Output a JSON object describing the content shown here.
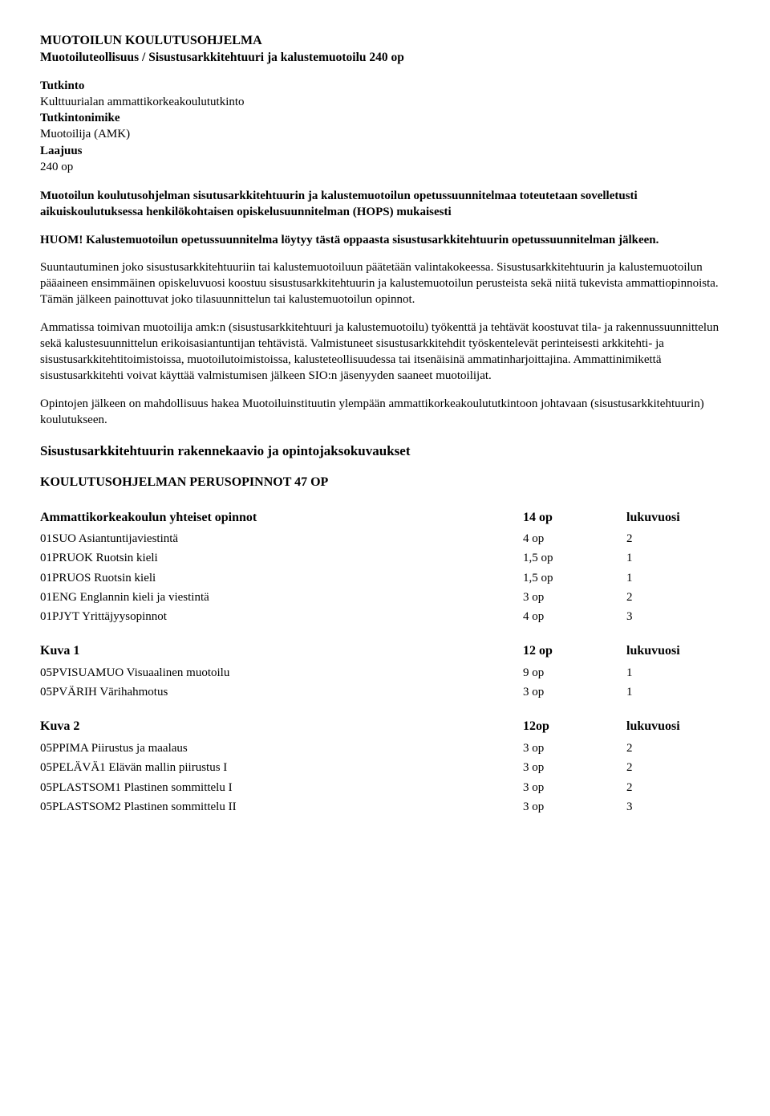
{
  "header": {
    "program_title": "MUOTOILUN KOULUTUSOHJELMA",
    "program_subtitle": "Muotoiluteollisuus / Sisustusarkkitehtuuri ja kalustemuotoilu 240 op",
    "meta": [
      {
        "label": "Tutkinto",
        "value": "Kulttuurialan ammattikorkeakoulututkinto"
      },
      {
        "label": "Tutkintonimike",
        "value": "Muotoilija (AMK)"
      },
      {
        "label": "Laajuus",
        "value": "240 op"
      }
    ]
  },
  "intro": {
    "p1": "Muotoilun koulutusohjelman sisutusarkkitehtuurin ja kalustemuotoilun opetussuunnitelmaa toteutetaan sovelletusti aikuiskoulutuksessa henkilökohtaisen opiskelusuunnitelman (HOPS) mukaisesti",
    "p2": "HUOM! Kalustemuotoilun opetussuunnitelma löytyy tästä oppaasta sisustusarkkitehtuurin opetussuunnitelman jälkeen.",
    "p3": "Suuntautuminen joko sisustusarkkitehtuuriin tai kalustemuotoiluun päätetään valintakokeessa. Sisustusarkkitehtuurin ja kalustemuotoilun pääaineen ensimmäinen opiskeluvuosi koostuu sisustusarkkitehtuurin ja kalustemuotoilun perusteista sekä niitä tukevista ammattiopinnoista. Tämän jälkeen painottuvat joko tilasuunnittelun tai kalustemuotoilun opinnot.",
    "p4": "Ammatissa toimivan muotoilija amk:n (sisustusarkkitehtuuri ja kalustemuotoilu) työkenttä ja tehtävät koostuvat tila- ja rakennussuunnittelun sekä kalustesuunnittelun erikoisasiantuntijan tehtävistä. Valmistuneet sisustusarkkitehdit työskentelevät perinteisesti arkkitehti- ja sisustusarkkitehtitoimistoissa, muotoilutoimistoissa, kalusteteollisuudessa tai itsenäisinä ammatinharjoittajina. Ammattinimikettä sisustusarkkitehti voivat käyttää valmistumisen jälkeen SIO:n jäsenyyden saaneet muotoilijat.",
    "p5": "Opintojen jälkeen on mahdollisuus hakea Muotoiluinstituutin ylempään ammattikorkeakoulututkintoon johtavaan (sisustusarkkitehtuurin) koulutukseen."
  },
  "structure_heading": "Sisustusarkkitehtuurin rakennekaavio ja opintojaksokuvaukset",
  "main_section_heading": "KOULUTUSOHJELMAN PERUSOPINNOT 47 OP",
  "groups": [
    {
      "title": "Ammattikorkeakoulun yhteiset opinnot",
      "op": "14 op",
      "luku": "lukuvuosi",
      "rows": [
        {
          "name": "01SUO Asiantuntijaviestintä",
          "op": "4 op",
          "luku": "2"
        },
        {
          "name": "01PRUOK Ruotsin kieli",
          "op": "1,5 op",
          "luku": "1"
        },
        {
          "name": "01PRUOS Ruotsin kieli",
          "op": "1,5 op",
          "luku": "1"
        },
        {
          "name": "01ENG Englannin kieli ja viestintä",
          "op": "3 op",
          "luku": "2"
        },
        {
          "name": "01PJYT Yrittäjyysopinnot",
          "op": "4 op",
          "luku": "3"
        }
      ]
    },
    {
      "title": "Kuva 1",
      "op": "12 op",
      "luku": "lukuvuosi",
      "rows": [
        {
          "name": "05PVISUAMUO Visuaalinen muotoilu",
          "op": "9 op",
          "luku": "1"
        },
        {
          "name": "05PVÄRIH Värihahmotus",
          "op": "3 op",
          "luku": "1"
        }
      ]
    },
    {
      "title": "Kuva 2",
      "op": "12op",
      "luku": "lukuvuosi",
      "rows": [
        {
          "name": "05PPIMA Piirustus ja maalaus",
          "op": "3 op",
          "luku": "2"
        },
        {
          "name": "05PELÄVÄ1 Elävän mallin piirustus I",
          "op": "3 op",
          "luku": "2"
        },
        {
          "name": "05PLASTSOM1 Plastinen sommittelu I",
          "op": "3 op",
          "luku": "2"
        },
        {
          "name": "05PLASTSOM2 Plastinen sommittelu II",
          "op": "3 op",
          "luku": "3"
        }
      ]
    }
  ]
}
